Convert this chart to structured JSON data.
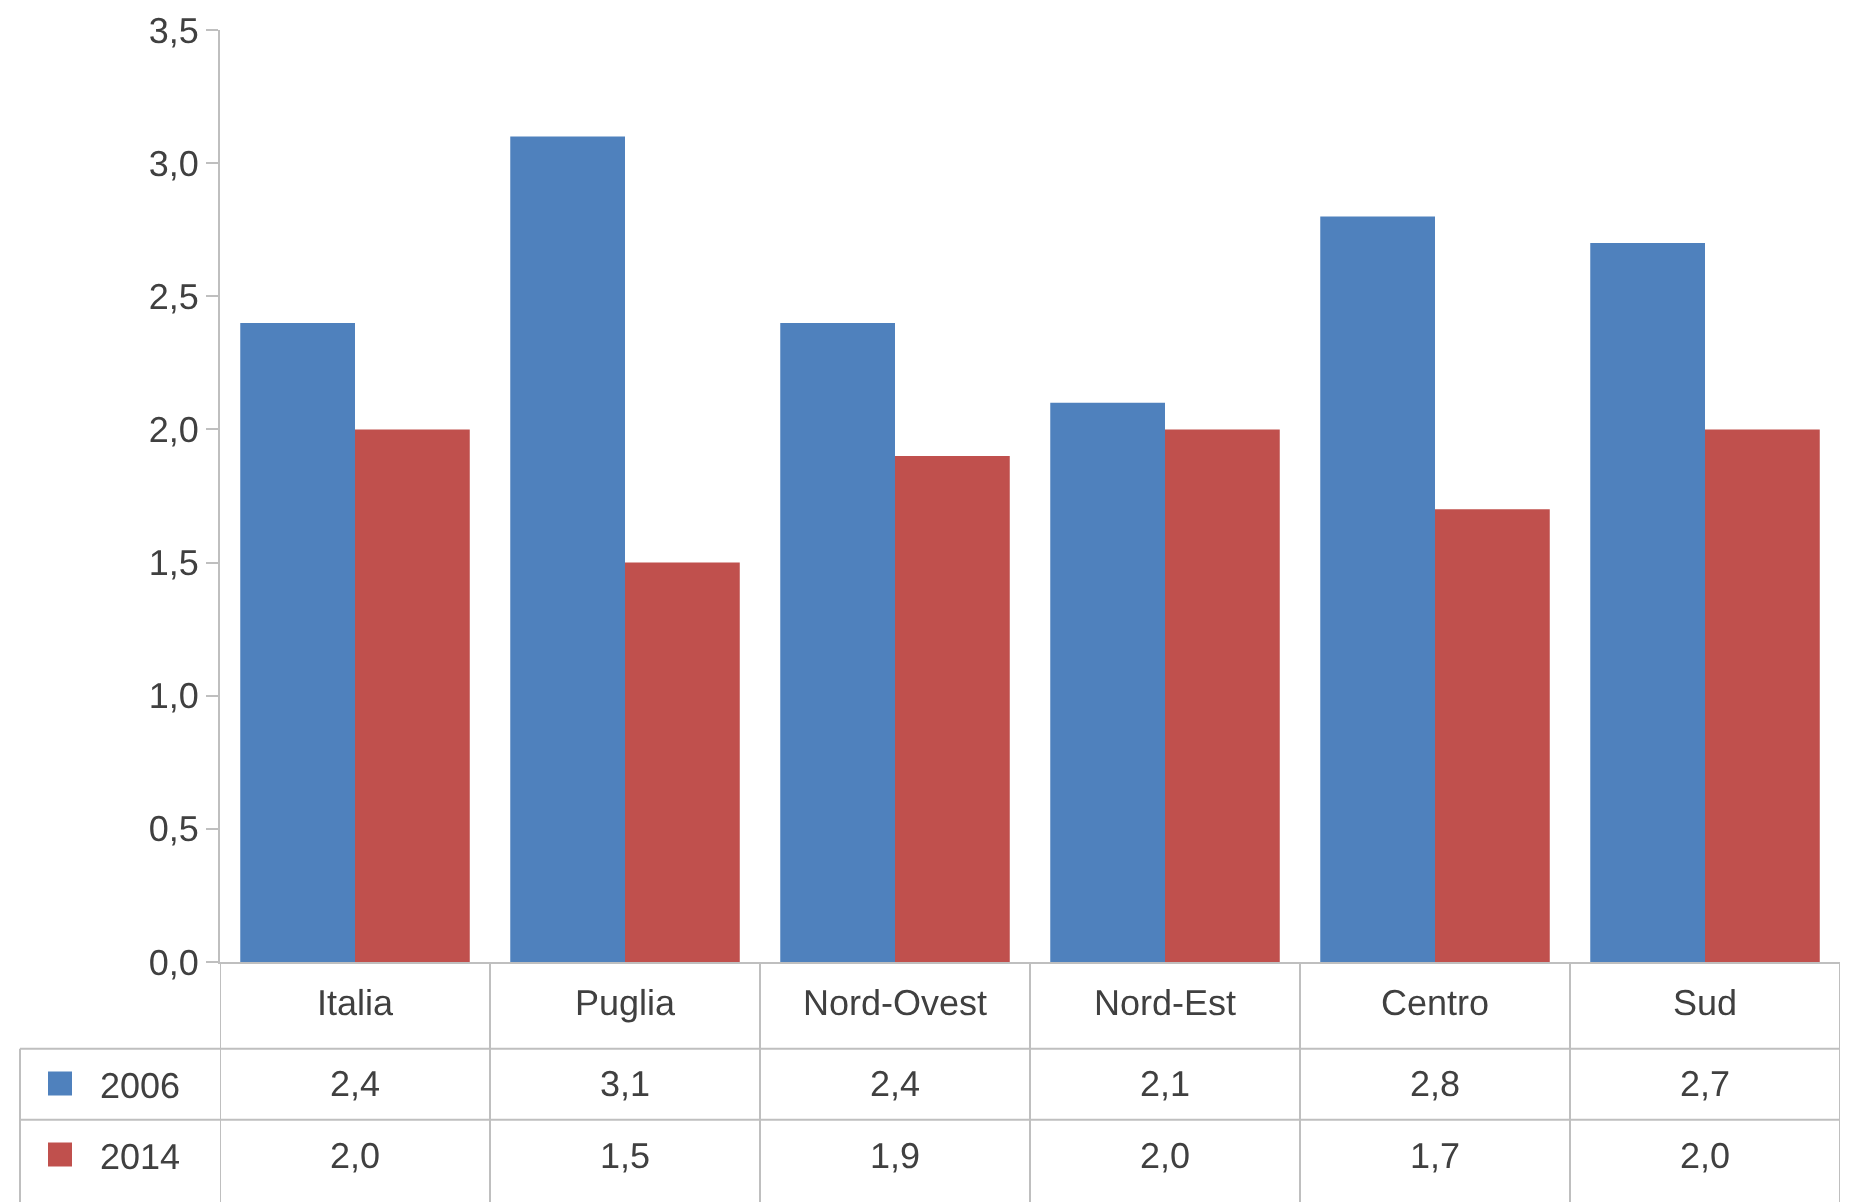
{
  "chart_data": {
    "type": "bar",
    "categories": [
      "Italia",
      "Puglia",
      "Nord-Ovest",
      "Nord-Est",
      "Centro",
      "Sud"
    ],
    "series": [
      {
        "name": "2006",
        "color": "#4f81bd",
        "values": [
          2.4,
          3.1,
          2.4,
          2.1,
          2.8,
          2.7
        ],
        "value_labels": [
          "2,4",
          "3,1",
          "2,4",
          "2,1",
          "2,8",
          "2,7"
        ]
      },
      {
        "name": "2014",
        "color": "#c0504d",
        "values": [
          2.0,
          1.5,
          1.9,
          2.0,
          1.7,
          2.0
        ],
        "value_labels": [
          "2,0",
          "1,5",
          "1,9",
          "2,0",
          "1,7",
          "2,0"
        ]
      }
    ],
    "ylim": [
      0,
      3.5
    ],
    "yticks": [
      {
        "value": 0,
        "label": "0,0"
      },
      {
        "value": 0.5,
        "label": "0,5"
      },
      {
        "value": 1,
        "label": "1,0"
      },
      {
        "value": 1.5,
        "label": "1,5"
      },
      {
        "value": 2,
        "label": "2,0"
      },
      {
        "value": 2.5,
        "label": "2,5"
      },
      {
        "value": 3,
        "label": "3,0"
      },
      {
        "value": 3.5,
        "label": "3,5"
      }
    ],
    "grid": false,
    "legend": "bottom"
  }
}
